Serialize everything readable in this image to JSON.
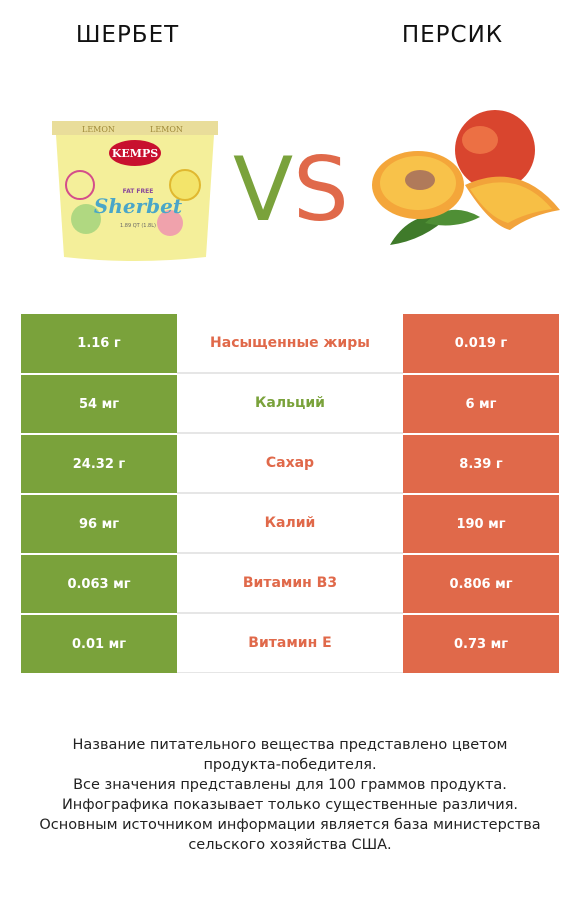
{
  "header": {
    "left_title": "ШЕРБЕТ",
    "right_title": "ПЕРСИК",
    "vs_left": "V",
    "vs_right": "S"
  },
  "images": {
    "left": {
      "icon": "sherbet-cup-icon",
      "brand": "KEMPS",
      "flavor": "LEMON",
      "label": "FAT FREE",
      "name": "Sherbet",
      "volume": "1.89 QT (1.8L)"
    },
    "right": {
      "icon": "peach-icon"
    }
  },
  "colors": {
    "left": "#7aa23b",
    "right": "#e0694a"
  },
  "rows": [
    {
      "name": "Насыщенные жиры",
      "left": "1.16 г",
      "right": "0.019 г",
      "winner": "right"
    },
    {
      "name": "Кальций",
      "left": "54 мг",
      "right": "6 мг",
      "winner": "left"
    },
    {
      "name": "Сахар",
      "left": "24.32 г",
      "right": "8.39 г",
      "winner": "right"
    },
    {
      "name": "Калий",
      "left": "96 мг",
      "right": "190 мг",
      "winner": "right"
    },
    {
      "name": "Витамин B3",
      "left": "0.063 мг",
      "right": "0.806 мг",
      "winner": "right"
    },
    {
      "name": "Витамин E",
      "left": "0.01 мг",
      "right": "0.73 мг",
      "winner": "right"
    }
  ],
  "footnote": [
    "Название питательного вещества представлено цветом",
    "продукта-победителя.",
    "Все значения представлены для 100 граммов продукта.",
    "Инфографика показывает только существенные различия.",
    "Основным источником информации является база министерства",
    "сельского хозяйства США."
  ]
}
